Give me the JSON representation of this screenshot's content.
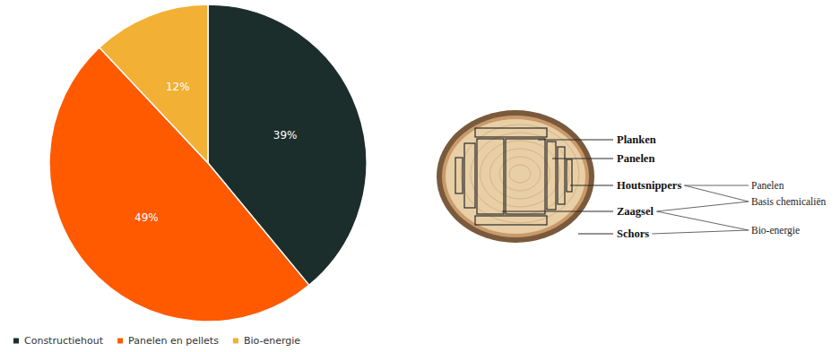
{
  "chart_data": {
    "type": "pie",
    "categories": [
      "Constructiehout",
      "Panelen en pellets",
      "Bio-energie"
    ],
    "values": [
      39,
      49,
      12
    ],
    "value_labels": [
      "39%",
      "49%",
      "12%"
    ],
    "colors": [
      "#1c2e2b",
      "#ff5a00",
      "#f2b035"
    ],
    "data_labels": true,
    "legend": "bottom left"
  },
  "diagram": {
    "parts": [
      "Planken",
      "Panelen",
      "Houtsnippers",
      "Zaagsel",
      "Schors"
    ],
    "uses": [
      "Panelen",
      "Basis chemicaliën",
      "Bio-energie"
    ],
    "links": [
      {
        "from": "Houtsnippers",
        "to": "Panelen"
      },
      {
        "from": "Houtsnippers",
        "to": "Basis chemicaliën"
      },
      {
        "from": "Zaagsel",
        "to": "Basis chemicaliën"
      },
      {
        "from": "Zaagsel",
        "to": "Bio-energie"
      },
      {
        "from": "Schors",
        "to": "Bio-energie"
      }
    ]
  }
}
